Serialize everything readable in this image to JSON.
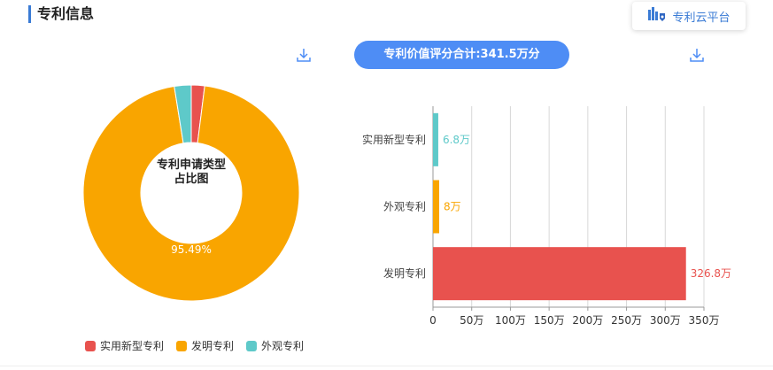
{
  "header": {
    "title": "专利信息",
    "cloud_button_label": "专利云平台"
  },
  "value_summary": "专利价值评分合计:341.5万分",
  "icons": {
    "download": "download-icon",
    "cloud": "patent-cloud-icon"
  },
  "chart_data": [
    {
      "type": "pie",
      "donut": true,
      "center_label": [
        "专利申请类型",
        "占比图"
      ],
      "slices": [
        {
          "name": "实用新型专利",
          "value": 1.99,
          "color": "#e8524e"
        },
        {
          "name": "发明专利",
          "value": 95.49,
          "color": "#f9a500",
          "label": "95.49%"
        },
        {
          "name": "外观专利",
          "value": 2.52,
          "color": "#5ec9c9"
        }
      ],
      "legend": [
        "实用新型专利",
        "发明专利",
        "外观专利"
      ],
      "legend_position": "bottom"
    },
    {
      "type": "bar",
      "orientation": "horizontal",
      "categories": [
        "实用新型专利",
        "外观专利",
        "发明专利"
      ],
      "values": [
        6.8,
        8,
        326.8
      ],
      "value_labels": [
        "6.8万",
        "8万",
        "326.8万"
      ],
      "colors": [
        "#5ec9c9",
        "#f9a500",
        "#e8524e"
      ],
      "xlim": [
        0,
        350
      ],
      "x_ticks": [
        "0",
        "50万",
        "100万",
        "150万",
        "200万",
        "250万",
        "300万",
        "350万"
      ],
      "grid": true
    }
  ]
}
